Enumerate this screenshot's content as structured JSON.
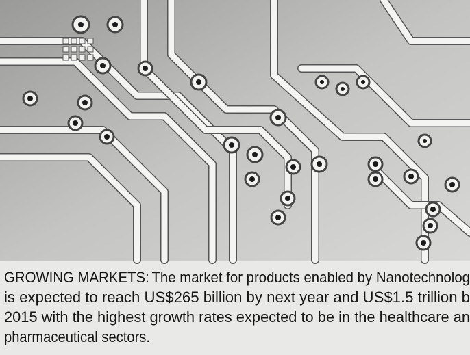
{
  "caption": {
    "label": "GROWING MARKETS:",
    "lines": [
      "The market for products enabled by Nanotechnolog",
      "is expected to reach US$265 billion by next year and US$1.5 trillion b",
      "2015 with the highest growth rates expected to be in the healthcare an",
      "pharmaceutical sectors."
    ]
  }
}
